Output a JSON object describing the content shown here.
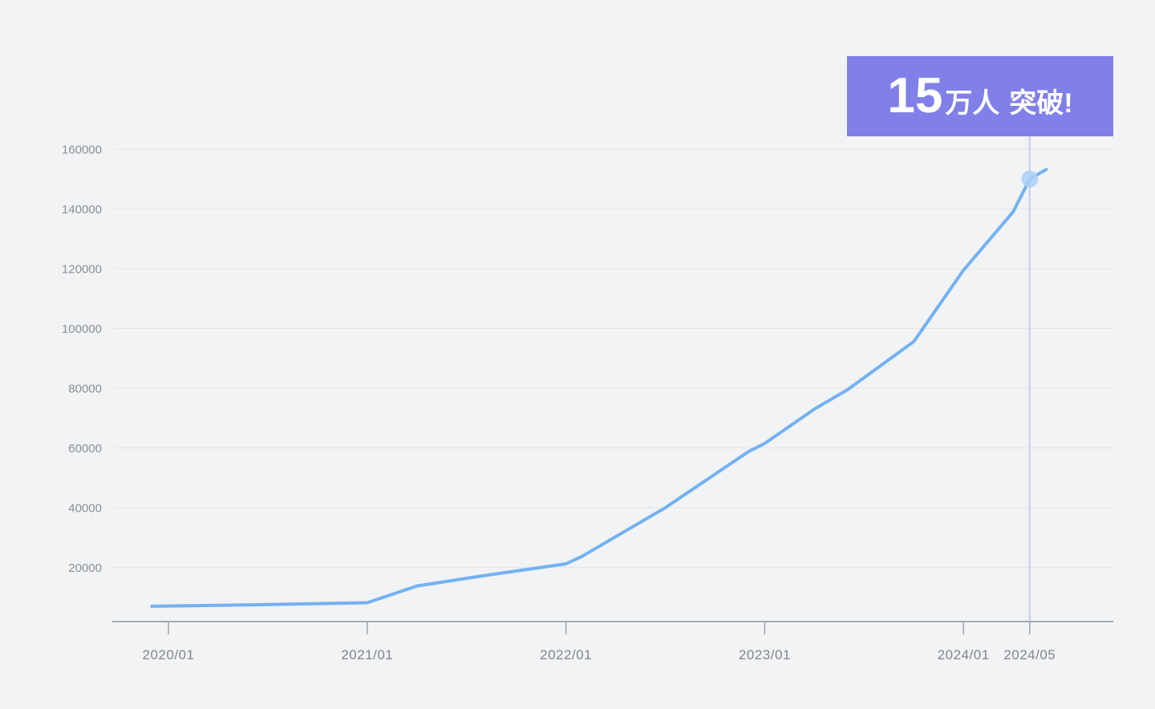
{
  "annotation": {
    "number": "15",
    "unit": "万人",
    "label": "突破!",
    "bg_color": "#8080E8",
    "text_color": "#FFFFFF"
  },
  "chart_data": {
    "type": "line",
    "title": "",
    "xlabel": "",
    "ylabel": "",
    "legend": "none",
    "grid": "horizontal",
    "points": [
      {
        "date": "2019/12",
        "value": 7000
      },
      {
        "date": "2020/06",
        "value": 7500
      },
      {
        "date": "2021/01",
        "value": 8200
      },
      {
        "date": "2021/04",
        "value": 13800
      },
      {
        "date": "2021/08",
        "value": 17200
      },
      {
        "date": "2022/01",
        "value": 21200
      },
      {
        "date": "2022/02",
        "value": 23800
      },
      {
        "date": "2022/07",
        "value": 40000
      },
      {
        "date": "2022/12",
        "value": 58700
      },
      {
        "date": "2023/01",
        "value": 61500
      },
      {
        "date": "2023/04",
        "value": 73000
      },
      {
        "date": "2023/06",
        "value": 79500
      },
      {
        "date": "2023/10",
        "value": 95600
      },
      {
        "date": "2024/01",
        "value": 119500
      },
      {
        "date": "2024/04",
        "value": 139000
      },
      {
        "date": "2024/05",
        "value": 150000
      },
      {
        "date": "2024/06",
        "value": 153200
      }
    ],
    "x_tick_labels": [
      "2020/01",
      "2021/01",
      "2022/01",
      "2023/01",
      "2024/01",
      "2024/05"
    ],
    "y_tick_labels": [
      "20000",
      "40000",
      "60000",
      "80000",
      "100000",
      "120000",
      "140000",
      "160000"
    ],
    "y_ticks": [
      20000,
      40000,
      60000,
      80000,
      100000,
      120000,
      140000,
      160000
    ],
    "ylim": [
      0,
      165000
    ],
    "xlim": [
      "2019/11",
      "2024/08"
    ],
    "highlight_point": {
      "date": "2024/05",
      "value": 150000
    },
    "colors": {
      "line": "#73B2F2",
      "highlight_dot": "#A9CFF7",
      "marker_line": "#C7C9F5",
      "axis": "#A5A9AD",
      "tick": "#9EA3A7",
      "gridline": "#E5E8EA"
    }
  }
}
